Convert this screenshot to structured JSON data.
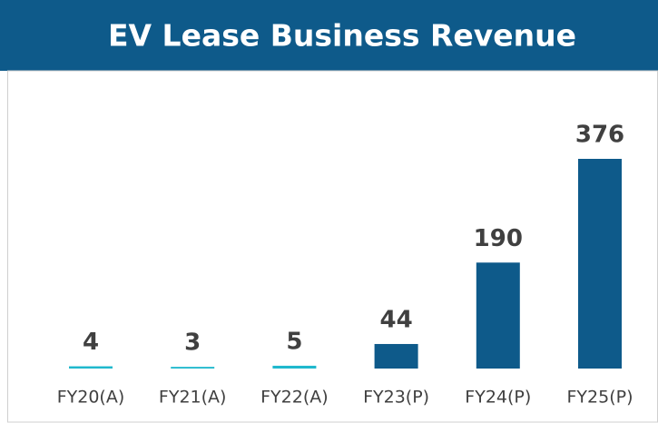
{
  "chart_data": {
    "type": "bar",
    "title": "EV Lease Business Revenue",
    "categories": [
      "FY20(A)",
      "FY21(A)",
      "FY22(A)",
      "FY23(P)",
      "FY24(P)",
      "FY25(P)"
    ],
    "values": [
      4,
      3,
      5,
      44,
      190,
      376
    ],
    "colors": [
      "#1fb8cd",
      "#1fb8cd",
      "#1fb8cd",
      "#0e5a8a",
      "#0e5a8a",
      "#0e5a8a"
    ]
  }
}
